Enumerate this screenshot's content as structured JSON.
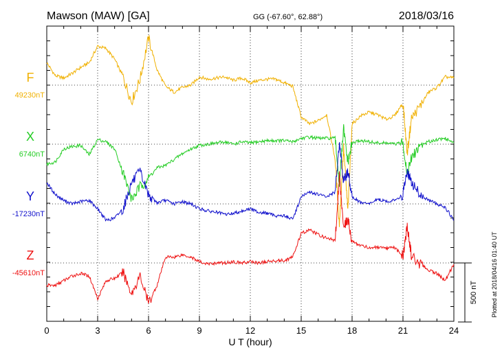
{
  "header": {
    "station": "Mawson (MAW)  [GA]",
    "coords": "GG (-67.60°,  62.88°)",
    "date": "2018/03/16"
  },
  "footer": {
    "plotted": "Plotted at 2018/04/16 01:40 UT"
  },
  "chart_data": {
    "type": "line",
    "title": "Mawson (MAW)  [GA]",
    "xlabel": "U T (hour)",
    "ylabel": "",
    "xlim": [
      0,
      24
    ],
    "xticks": [
      0,
      3,
      6,
      9,
      12,
      15,
      18,
      21,
      24
    ],
    "scale_bar": {
      "label": "500 nT",
      "value_nT": 500
    },
    "grid": true,
    "series": [
      {
        "name": "F",
        "baseline_label": "49230nT",
        "baseline_nT": 49230,
        "color": "#f0b000",
        "x": [
          0,
          0.5,
          1,
          1.5,
          2,
          2.5,
          3,
          3.5,
          4,
          4.5,
          5,
          5.5,
          6,
          6.5,
          7,
          7.5,
          8,
          8.5,
          9,
          9.5,
          10,
          10.5,
          11,
          11.5,
          12,
          12.5,
          13,
          13.5,
          14,
          14.5,
          15,
          15.5,
          16,
          16.5,
          17,
          17.25,
          17.5,
          17.75,
          18,
          18.5,
          19,
          19.5,
          20,
          20.5,
          21,
          21.25,
          21.5,
          22,
          22.5,
          23,
          23.5,
          24
        ],
        "y": [
          49420,
          49310,
          49290,
          49330,
          49380,
          49420,
          49560,
          49540,
          49450,
          49300,
          49090,
          49280,
          49630,
          49360,
          49220,
          49170,
          49210,
          49230,
          49300,
          49280,
          49290,
          49300,
          49270,
          49290,
          49250,
          49270,
          49280,
          49280,
          49250,
          49220,
          48960,
          48900,
          48930,
          48980,
          48600,
          48050,
          48700,
          48160,
          48900,
          48970,
          49000,
          48980,
          48940,
          48970,
          49080,
          48650,
          48950,
          49050,
          49170,
          49210,
          49300,
          49290
        ]
      },
      {
        "name": "X",
        "baseline_label": "6740nT",
        "baseline_nT": 6740,
        "color": "#22cc22",
        "x": [
          0,
          0.5,
          1,
          1.5,
          2,
          2.5,
          3,
          3.5,
          4,
          4.5,
          5,
          5.5,
          6,
          6.5,
          7,
          7.5,
          8,
          8.5,
          9,
          9.5,
          10,
          10.5,
          11,
          11.5,
          12,
          12.5,
          13,
          13.5,
          14,
          14.5,
          15,
          15.5,
          16,
          16.5,
          17,
          17.25,
          17.5,
          17.75,
          18,
          18.5,
          19,
          19.5,
          20,
          20.5,
          21,
          21.25,
          21.5,
          22,
          22.5,
          23,
          23.5,
          24
        ],
        "y": [
          6570,
          6590,
          6700,
          6720,
          6730,
          6650,
          6780,
          6760,
          6700,
          6500,
          6270,
          6380,
          6450,
          6540,
          6560,
          6610,
          6660,
          6700,
          6730,
          6740,
          6750,
          6760,
          6740,
          6760,
          6750,
          6760,
          6770,
          6770,
          6770,
          6760,
          6790,
          6800,
          6790,
          6790,
          6790,
          6400,
          6870,
          6580,
          6750,
          6770,
          6760,
          6750,
          6750,
          6740,
          6750,
          6490,
          6620,
          6730,
          6760,
          6780,
          6790,
          6750
        ]
      },
      {
        "name": "Y",
        "baseline_label": "-17230nT",
        "baseline_nT": -17230,
        "color": "#1010cc",
        "x": [
          0,
          0.5,
          1,
          1.5,
          2,
          2.5,
          3,
          3.5,
          4,
          4.5,
          5,
          5.5,
          6,
          6.5,
          7,
          7.5,
          8,
          8.5,
          9,
          9.5,
          10,
          10.5,
          11,
          11.5,
          12,
          12.5,
          13,
          13.5,
          14,
          14.5,
          15,
          15.5,
          16,
          16.5,
          17,
          17.25,
          17.5,
          17.75,
          18,
          18.5,
          19,
          19.5,
          20,
          20.5,
          21,
          21.25,
          21.5,
          22,
          22.5,
          23,
          23.5,
          24
        ],
        "y": [
          -17050,
          -17150,
          -17200,
          -17230,
          -17210,
          -17200,
          -17270,
          -17370,
          -17350,
          -17270,
          -17050,
          -16960,
          -17150,
          -17220,
          -17200,
          -17230,
          -17210,
          -17230,
          -17270,
          -17290,
          -17300,
          -17320,
          -17310,
          -17290,
          -17270,
          -17300,
          -17310,
          -17330,
          -17330,
          -17360,
          -17170,
          -17130,
          -17150,
          -17170,
          -17130,
          -16700,
          -17050,
          -16950,
          -17170,
          -17220,
          -17230,
          -17190,
          -17210,
          -17200,
          -17150,
          -16950,
          -17050,
          -17150,
          -17200,
          -17230,
          -17260,
          -17370
        ]
      },
      {
        "name": "Z",
        "baseline_label": "-45610nT",
        "baseline_nT": -45610,
        "color": "#ee1111",
        "x": [
          0,
          0.5,
          1,
          1.5,
          2,
          2.5,
          3,
          3.5,
          4,
          4.5,
          5,
          5.5,
          6,
          6.5,
          7,
          7.5,
          8,
          8.5,
          9,
          9.5,
          10,
          10.5,
          11,
          11.5,
          12,
          12.5,
          13,
          13.5,
          14,
          14.5,
          15,
          15.5,
          16,
          16.5,
          17,
          17.25,
          17.5,
          17.75,
          18,
          18.5,
          19,
          19.5,
          20,
          20.5,
          21,
          21.25,
          21.5,
          22,
          22.5,
          23,
          23.5,
          24
        ],
        "y": [
          -45800,
          -45800,
          -45760,
          -45720,
          -45700,
          -45720,
          -45910,
          -45760,
          -45740,
          -45690,
          -45870,
          -45720,
          -45950,
          -45800,
          -45560,
          -45560,
          -45540,
          -45560,
          -45600,
          -45620,
          -45610,
          -45610,
          -45600,
          -45610,
          -45600,
          -45610,
          -45600,
          -45590,
          -45590,
          -45560,
          -45360,
          -45330,
          -45370,
          -45400,
          -45420,
          -44870,
          -45300,
          -45240,
          -45430,
          -45460,
          -45480,
          -45480,
          -45490,
          -45480,
          -45550,
          -45300,
          -45550,
          -45620,
          -45670,
          -45700,
          -45760,
          -45620
        ]
      }
    ]
  }
}
